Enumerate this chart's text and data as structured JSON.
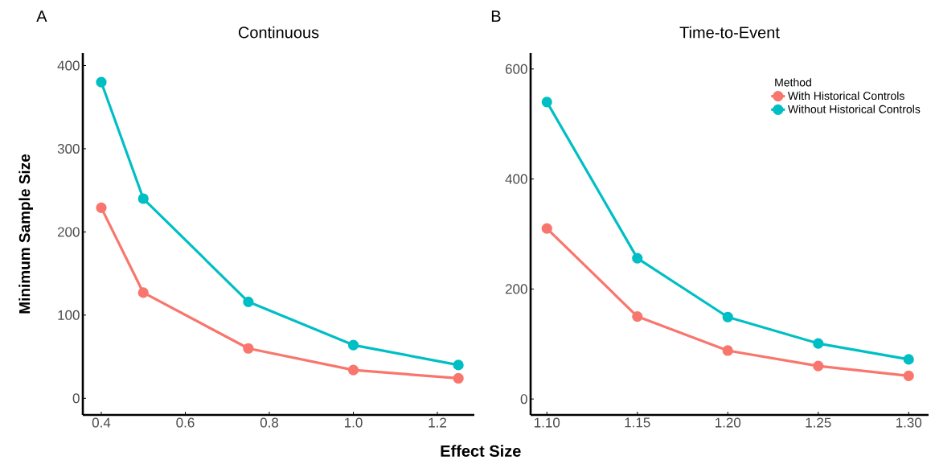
{
  "chart_data": [
    {
      "type": "line",
      "title": "Continuous",
      "xlabel": "Effect Size",
      "ylabel": "Minimum Sample Size",
      "annotations": [
        "A"
      ],
      "marker": "circle",
      "line_style": "solid",
      "x": [
        0.4,
        0.5,
        0.75,
        1.0,
        1.25
      ],
      "series": [
        {
          "color": "#f8766d",
          "values": [
            229,
            127,
            60,
            34,
            24
          ]
        },
        {
          "color": "#00bfc4",
          "values": [
            380,
            240,
            116,
            64,
            40
          ]
        }
      ],
      "xlim": [
        0.356,
        1.288
      ],
      "ylim": [
        -20,
        415
      ],
      "xticks": [
        0.4,
        0.6,
        0.8,
        {
          "value": 1.0,
          "label": "1.0"
        },
        1.2
      ],
      "yticks": [
        0,
        100,
        200,
        300,
        400
      ]
    },
    {
      "type": "line",
      "title": "Time-to-Event",
      "annotations": [
        "B"
      ],
      "marker": "circle",
      "line_style": "solid",
      "legend": "top right",
      "legend_title": "Method",
      "x": [
        1.1,
        1.15,
        1.2,
        1.25,
        1.3
      ],
      "series": [
        {
          "name": "With Historical Controls",
          "color": "#f8766d",
          "values": [
            310,
            150,
            88,
            60,
            42
          ]
        },
        {
          "name": "Without Historical Controls",
          "color": "#00bfc4",
          "values": [
            540,
            256,
            149,
            101,
            72
          ]
        }
      ],
      "xlim": [
        1.091,
        1.311
      ],
      "ylim": [
        -29,
        629
      ],
      "xticks": [
        {
          "value": 1.1,
          "label": "1.10"
        },
        {
          "value": 1.15,
          "label": "1.15"
        },
        {
          "value": 1.2,
          "label": "1.20"
        },
        {
          "value": 1.25,
          "label": "1.25"
        },
        {
          "value": 1.3,
          "label": "1.30"
        }
      ],
      "yticks": [
        0,
        200,
        400,
        600
      ]
    }
  ]
}
